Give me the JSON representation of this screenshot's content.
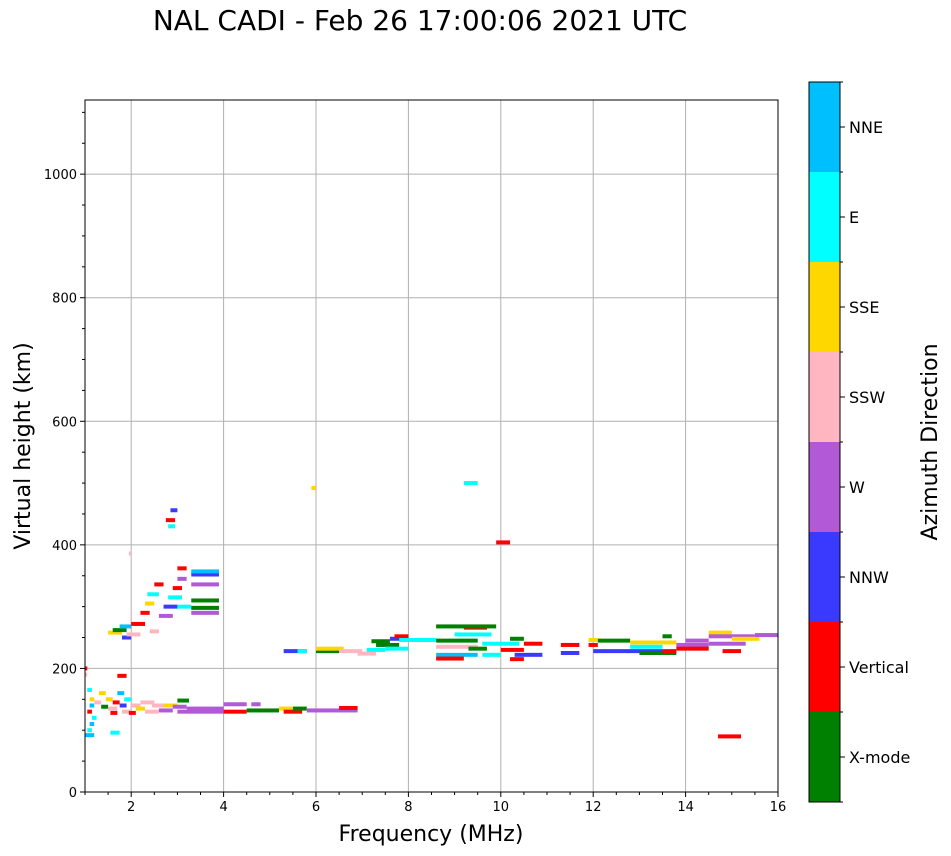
{
  "chart_data": {
    "type": "scatter",
    "title": "NAL CADI - Feb 26 17:00:06 2021 UTC",
    "xlabel": "Frequency (MHz)",
    "ylabel": "Virtual height (km)",
    "colorbar_label": "Azimuth Direction",
    "xlim": [
      1,
      16
    ],
    "ylim": [
      0,
      1120
    ],
    "xticks": [
      2,
      4,
      6,
      8,
      10,
      12,
      14,
      16
    ],
    "yticks": [
      0,
      200,
      400,
      600,
      800,
      1000
    ],
    "grid": true,
    "categories": [
      {
        "name": "X-mode",
        "color": "#008000"
      },
      {
        "name": "Vertical",
        "color": "#ff0000"
      },
      {
        "name": "NNW",
        "color": "#3a3aff"
      },
      {
        "name": "W",
        "color": "#b159d6"
      },
      {
        "name": "SSW",
        "color": "#ffb6c1"
      },
      {
        "name": "SSE",
        "color": "#ffd700"
      },
      {
        "name": "E",
        "color": "#00ffff"
      },
      {
        "name": "NNE",
        "color": "#00bfff"
      }
    ],
    "points": [
      {
        "f1": 1.0,
        "f2": 1.05,
        "h": 200,
        "c": "Vertical"
      },
      {
        "f1": 1.0,
        "f2": 1.05,
        "h": 190,
        "c": "SSW"
      },
      {
        "f1": 1.05,
        "f2": 1.15,
        "h": 165,
        "c": "E"
      },
      {
        "f1": 1.1,
        "f2": 1.2,
        "h": 150,
        "c": "SSE"
      },
      {
        "f1": 1.1,
        "f2": 1.2,
        "h": 140,
        "c": "NNE"
      },
      {
        "f1": 1.05,
        "f2": 1.15,
        "h": 130,
        "c": "Vertical"
      },
      {
        "f1": 1.15,
        "f2": 1.25,
        "h": 120,
        "c": "E"
      },
      {
        "f1": 1.1,
        "f2": 1.2,
        "h": 110,
        "c": "NNE"
      },
      {
        "f1": 1.05,
        "f2": 1.15,
        "h": 100,
        "c": "E"
      },
      {
        "f1": 1.0,
        "f2": 1.2,
        "h": 92,
        "c": "NNE"
      },
      {
        "f1": 1.2,
        "f2": 1.35,
        "h": 145,
        "c": "SSW"
      },
      {
        "f1": 1.3,
        "f2": 1.45,
        "h": 160,
        "c": "SSE"
      },
      {
        "f1": 1.35,
        "f2": 1.5,
        "h": 138,
        "c": "X-mode"
      },
      {
        "f1": 1.45,
        "f2": 1.6,
        "h": 150,
        "c": "SSE"
      },
      {
        "f1": 1.5,
        "f2": 1.7,
        "h": 135,
        "c": "SSW"
      },
      {
        "f1": 1.6,
        "f2": 1.75,
        "h": 145,
        "c": "Vertical"
      },
      {
        "f1": 1.55,
        "f2": 1.7,
        "h": 128,
        "c": "Vertical"
      },
      {
        "f1": 1.7,
        "f2": 1.85,
        "h": 160,
        "c": "NNE"
      },
      {
        "f1": 1.75,
        "f2": 1.9,
        "h": 140,
        "c": "NNW"
      },
      {
        "f1": 1.8,
        "f2": 2.0,
        "h": 130,
        "c": "SSW"
      },
      {
        "f1": 1.85,
        "f2": 2.0,
        "h": 150,
        "c": "E"
      },
      {
        "f1": 1.7,
        "f2": 1.9,
        "h": 188,
        "c": "Vertical"
      },
      {
        "f1": 1.55,
        "f2": 1.75,
        "h": 96,
        "c": "E"
      },
      {
        "f1": 1.95,
        "f2": 2.1,
        "h": 128,
        "c": "Vertical"
      },
      {
        "f1": 2.0,
        "f2": 2.2,
        "h": 140,
        "c": "SSW"
      },
      {
        "f1": 2.1,
        "f2": 2.3,
        "h": 135,
        "c": "SSE"
      },
      {
        "f1": 2.2,
        "f2": 2.5,
        "h": 145,
        "c": "SSW"
      },
      {
        "f1": 2.3,
        "f2": 2.6,
        "h": 130,
        "c": "SSW"
      },
      {
        "f1": 2.45,
        "f2": 2.7,
        "h": 140,
        "c": "SSW"
      },
      {
        "f1": 2.6,
        "f2": 2.9,
        "h": 132,
        "c": "W"
      },
      {
        "f1": 2.7,
        "f2": 3.0,
        "h": 140,
        "c": "SSE"
      },
      {
        "f1": 2.9,
        "f2": 3.2,
        "h": 138,
        "c": "W"
      },
      {
        "f1": 3.0,
        "f2": 3.25,
        "h": 148,
        "c": "X-mode"
      },
      {
        "f1": 3.0,
        "f2": 4.0,
        "h": 130,
        "c": "W"
      },
      {
        "f1": 3.2,
        "f2": 4.0,
        "h": 135,
        "c": "W"
      },
      {
        "f1": 4.0,
        "f2": 4.5,
        "h": 130,
        "c": "Vertical"
      },
      {
        "f1": 4.0,
        "f2": 4.5,
        "h": 142,
        "c": "W"
      },
      {
        "f1": 4.5,
        "f2": 5.2,
        "h": 132,
        "c": "X-mode"
      },
      {
        "f1": 4.6,
        "f2": 4.8,
        "h": 142,
        "c": "W"
      },
      {
        "f1": 5.2,
        "f2": 5.5,
        "h": 135,
        "c": "SSE"
      },
      {
        "f1": 5.3,
        "f2": 5.7,
        "h": 130,
        "c": "Vertical"
      },
      {
        "f1": 5.5,
        "f2": 5.8,
        "h": 135,
        "c": "X-mode"
      },
      {
        "f1": 5.8,
        "f2": 6.4,
        "h": 132,
        "c": "W"
      },
      {
        "f1": 6.4,
        "f2": 6.9,
        "h": 132,
        "c": "W"
      },
      {
        "f1": 6.5,
        "f2": 6.9,
        "h": 136,
        "c": "Vertical"
      },
      {
        "f1": 1.5,
        "f2": 1.8,
        "h": 258,
        "c": "SSE"
      },
      {
        "f1": 1.6,
        "f2": 1.9,
        "h": 262,
        "c": "X-mode"
      },
      {
        "f1": 1.75,
        "f2": 2.0,
        "h": 268,
        "c": "NNE"
      },
      {
        "f1": 1.8,
        "f2": 2.0,
        "h": 250,
        "c": "NNW"
      },
      {
        "f1": 1.9,
        "f2": 2.2,
        "h": 255,
        "c": "SSW"
      },
      {
        "f1": 2.0,
        "f2": 2.3,
        "h": 272,
        "c": "Vertical"
      },
      {
        "f1": 2.2,
        "f2": 2.4,
        "h": 290,
        "c": "Vertical"
      },
      {
        "f1": 2.3,
        "f2": 2.5,
        "h": 305,
        "c": "SSE"
      },
      {
        "f1": 2.35,
        "f2": 2.6,
        "h": 320,
        "c": "E"
      },
      {
        "f1": 2.5,
        "f2": 2.7,
        "h": 336,
        "c": "Vertical"
      },
      {
        "f1": 2.4,
        "f2": 2.6,
        "h": 260,
        "c": "SSW"
      },
      {
        "f1": 2.6,
        "f2": 2.9,
        "h": 285,
        "c": "W"
      },
      {
        "f1": 2.7,
        "f2": 3.0,
        "h": 300,
        "c": "NNW"
      },
      {
        "f1": 2.8,
        "f2": 3.1,
        "h": 315,
        "c": "E"
      },
      {
        "f1": 2.9,
        "f2": 3.1,
        "h": 330,
        "c": "Vertical"
      },
      {
        "f1": 3.0,
        "f2": 3.2,
        "h": 345,
        "c": "W"
      },
      {
        "f1": 3.0,
        "f2": 3.3,
        "h": 300,
        "c": "E"
      },
      {
        "f1": 3.0,
        "f2": 3.2,
        "h": 362,
        "c": "Vertical"
      },
      {
        "f1": 2.75,
        "f2": 2.95,
        "h": 440,
        "c": "Vertical"
      },
      {
        "f1": 2.8,
        "f2": 2.95,
        "h": 430,
        "c": "E"
      },
      {
        "f1": 2.85,
        "f2": 3.0,
        "h": 456,
        "c": "NNW"
      },
      {
        "f1": 1.95,
        "f2": 2.0,
        "h": 386,
        "c": "SSW"
      },
      {
        "f1": 3.3,
        "f2": 3.9,
        "h": 290,
        "c": "W"
      },
      {
        "f1": 3.3,
        "f2": 3.9,
        "h": 298,
        "c": "X-mode"
      },
      {
        "f1": 3.3,
        "f2": 3.9,
        "h": 310,
        "c": "X-mode"
      },
      {
        "f1": 3.3,
        "f2": 3.9,
        "h": 336,
        "c": "W"
      },
      {
        "f1": 3.3,
        "f2": 3.9,
        "h": 352,
        "c": "NNW"
      },
      {
        "f1": 3.3,
        "f2": 3.9,
        "h": 357,
        "c": "NNE"
      },
      {
        "f1": 5.3,
        "f2": 5.8,
        "h": 228,
        "c": "NNW"
      },
      {
        "f1": 5.6,
        "f2": 5.8,
        "h": 228,
        "c": "E"
      },
      {
        "f1": 6.0,
        "f2": 6.5,
        "h": 228,
        "c": "X-mode"
      },
      {
        "f1": 6.0,
        "f2": 6.6,
        "h": 232,
        "c": "SSE"
      },
      {
        "f1": 6.5,
        "f2": 7.0,
        "h": 228,
        "c": "SSW"
      },
      {
        "f1": 6.9,
        "f2": 7.3,
        "h": 224,
        "c": "SSW"
      },
      {
        "f1": 7.1,
        "f2": 7.5,
        "h": 230,
        "c": "E"
      },
      {
        "f1": 7.3,
        "f2": 7.8,
        "h": 238,
        "c": "X-mode"
      },
      {
        "f1": 7.5,
        "f2": 8.0,
        "h": 232,
        "c": "E"
      },
      {
        "f1": 7.6,
        "f2": 8.0,
        "h": 248,
        "c": "NNW"
      },
      {
        "f1": 7.7,
        "f2": 8.0,
        "h": 252,
        "c": "Vertical"
      },
      {
        "f1": 7.8,
        "f2": 8.6,
        "h": 246,
        "c": "E"
      },
      {
        "f1": 7.2,
        "f2": 7.6,
        "h": 244,
        "c": "X-mode"
      },
      {
        "f1": 5.9,
        "f2": 6.0,
        "h": 492,
        "c": "SSE"
      },
      {
        "f1": 8.6,
        "f2": 9.5,
        "h": 222,
        "c": "NNE"
      },
      {
        "f1": 8.6,
        "f2": 9.2,
        "h": 216,
        "c": "Vertical"
      },
      {
        "f1": 8.6,
        "f2": 9.5,
        "h": 235,
        "c": "SSW"
      },
      {
        "f1": 8.6,
        "f2": 9.5,
        "h": 245,
        "c": "X-mode"
      },
      {
        "f1": 9.0,
        "f2": 9.8,
        "h": 255,
        "c": "E"
      },
      {
        "f1": 9.2,
        "f2": 9.7,
        "h": 266,
        "c": "Vertical"
      },
      {
        "f1": 8.6,
        "f2": 9.9,
        "h": 268,
        "c": "X-mode"
      },
      {
        "f1": 9.3,
        "f2": 9.7,
        "h": 232,
        "c": "X-mode"
      },
      {
        "f1": 9.6,
        "f2": 10.0,
        "h": 222,
        "c": "E"
      },
      {
        "f1": 9.6,
        "f2": 10.4,
        "h": 240,
        "c": "E"
      },
      {
        "f1": 9.2,
        "f2": 9.5,
        "h": 500,
        "c": "E"
      },
      {
        "f1": 9.9,
        "f2": 10.2,
        "h": 404,
        "c": "Vertical"
      },
      {
        "f1": 10.0,
        "f2": 10.5,
        "h": 230,
        "c": "Vertical"
      },
      {
        "f1": 10.2,
        "f2": 10.5,
        "h": 215,
        "c": "Vertical"
      },
      {
        "f1": 10.3,
        "f2": 10.9,
        "h": 222,
        "c": "NNW"
      },
      {
        "f1": 10.5,
        "f2": 10.9,
        "h": 240,
        "c": "Vertical"
      },
      {
        "f1": 10.2,
        "f2": 10.5,
        "h": 248,
        "c": "X-mode"
      },
      {
        "f1": 11.3,
        "f2": 11.7,
        "h": 225,
        "c": "NNW"
      },
      {
        "f1": 11.3,
        "f2": 11.7,
        "h": 238,
        "c": "Vertical"
      },
      {
        "f1": 11.9,
        "f2": 12.1,
        "h": 238,
        "c": "Vertical"
      },
      {
        "f1": 11.9,
        "f2": 12.1,
        "h": 246,
        "c": "SSE"
      },
      {
        "f1": 12.1,
        "f2": 12.8,
        "h": 245,
        "c": "X-mode"
      },
      {
        "f1": 12.0,
        "f2": 13.5,
        "h": 228,
        "c": "NNW"
      },
      {
        "f1": 12.8,
        "f2": 13.5,
        "h": 235,
        "c": "E"
      },
      {
        "f1": 12.8,
        "f2": 13.8,
        "h": 242,
        "c": "SSE"
      },
      {
        "f1": 13.0,
        "f2": 13.8,
        "h": 225,
        "c": "X-mode"
      },
      {
        "f1": 13.5,
        "f2": 13.7,
        "h": 252,
        "c": "X-mode"
      },
      {
        "f1": 13.5,
        "f2": 13.8,
        "h": 228,
        "c": "Vertical"
      },
      {
        "f1": 13.8,
        "f2": 14.5,
        "h": 238,
        "c": "W"
      },
      {
        "f1": 13.8,
        "f2": 14.5,
        "h": 232,
        "c": "Vertical"
      },
      {
        "f1": 14.0,
        "f2": 14.5,
        "h": 245,
        "c": "W"
      },
      {
        "f1": 14.5,
        "f2": 15.0,
        "h": 258,
        "c": "SSE"
      },
      {
        "f1": 14.5,
        "f2": 15.5,
        "h": 252,
        "c": "W"
      },
      {
        "f1": 14.5,
        "f2": 15.3,
        "h": 240,
        "c": "W"
      },
      {
        "f1": 14.8,
        "f2": 15.2,
        "h": 228,
        "c": "Vertical"
      },
      {
        "f1": 15.0,
        "f2": 15.6,
        "h": 248,
        "c": "SSE"
      },
      {
        "f1": 15.5,
        "f2": 16.0,
        "h": 254,
        "c": "W"
      },
      {
        "f1": 14.7,
        "f2": 15.2,
        "h": 90,
        "c": "Vertical"
      }
    ]
  }
}
